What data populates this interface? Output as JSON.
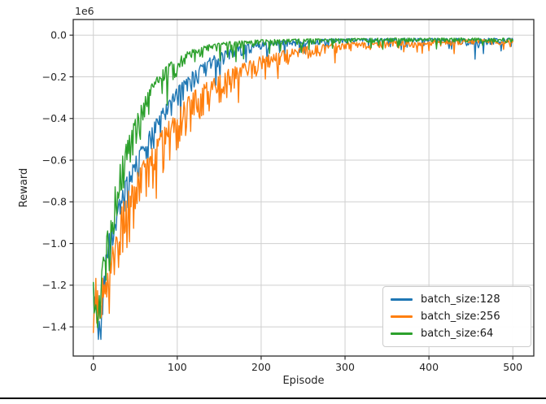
{
  "figure": {
    "background_color": "#ffffff",
    "bottom_rule_color": "#000000",
    "spine_color": "#2b2b2b",
    "grid_color": "#cfcfcf",
    "text_color": "#262626"
  },
  "chart_data": {
    "type": "line",
    "title": "",
    "xlabel": "Episode",
    "ylabel": "Reward",
    "y_offset_label": "1e6",
    "grid": true,
    "legend_position": "lower right",
    "xlim": [
      -24,
      525
    ],
    "ylim_1e6": [
      -1.54,
      0.075
    ],
    "x_range": [
      0,
      500
    ],
    "x_step": 1,
    "xticks": [
      0,
      100,
      200,
      300,
      400,
      500
    ],
    "xtick_labels": [
      "0",
      "100",
      "200",
      "300",
      "400",
      "500"
    ],
    "yticks_1e6": [
      0.0,
      -0.2,
      -0.4,
      -0.6,
      -0.8,
      -1.0,
      -1.2,
      -1.4
    ],
    "ytick_labels": [
      "0.0",
      "−0.2",
      "−0.4",
      "−0.6",
      "−0.8",
      "−1.0",
      "−1.2",
      "−1.4"
    ],
    "value_clamp_1e6": [
      -1.46,
      -0.004
    ],
    "series": [
      {
        "name": "batch_size:128",
        "color": "#1f77b4",
        "units": "1e6",
        "trend": [
          [
            0,
            -1.22
          ],
          [
            4,
            -1.36
          ],
          [
            8,
            -1.42
          ],
          [
            12,
            -1.18
          ],
          [
            16,
            -1.05
          ],
          [
            20,
            -0.98
          ],
          [
            25,
            -0.92
          ],
          [
            30,
            -0.84
          ],
          [
            35,
            -0.78
          ],
          [
            40,
            -0.72
          ],
          [
            45,
            -0.67
          ],
          [
            50,
            -0.63
          ],
          [
            55,
            -0.58
          ],
          [
            60,
            -0.545
          ],
          [
            65,
            -0.51
          ],
          [
            70,
            -0.47
          ],
          [
            75,
            -0.435
          ],
          [
            80,
            -0.4
          ],
          [
            85,
            -0.37
          ],
          [
            90,
            -0.34
          ],
          [
            95,
            -0.31
          ],
          [
            100,
            -0.28
          ],
          [
            110,
            -0.235
          ],
          [
            120,
            -0.19
          ],
          [
            130,
            -0.155
          ],
          [
            140,
            -0.125
          ],
          [
            150,
            -0.105
          ],
          [
            160,
            -0.088
          ],
          [
            170,
            -0.072
          ],
          [
            180,
            -0.06
          ],
          [
            190,
            -0.052
          ],
          [
            200,
            -0.045
          ],
          [
            220,
            -0.038
          ],
          [
            240,
            -0.032
          ],
          [
            260,
            -0.028
          ],
          [
            280,
            -0.026
          ],
          [
            300,
            -0.024
          ],
          [
            340,
            -0.022
          ],
          [
            380,
            -0.022
          ],
          [
            420,
            -0.022
          ],
          [
            460,
            -0.028
          ],
          [
            500,
            -0.02
          ]
        ],
        "noise_envelope": [
          [
            0,
            0.09
          ],
          [
            8,
            0.13
          ],
          [
            20,
            0.13
          ],
          [
            40,
            0.12
          ],
          [
            60,
            0.105
          ],
          [
            80,
            0.09
          ],
          [
            100,
            0.08
          ],
          [
            130,
            0.06
          ],
          [
            160,
            0.045
          ],
          [
            200,
            0.03
          ],
          [
            250,
            0.022
          ],
          [
            300,
            0.018
          ],
          [
            360,
            0.016
          ],
          [
            420,
            0.018
          ],
          [
            460,
            0.035
          ],
          [
            500,
            0.016
          ]
        ]
      },
      {
        "name": "batch_size:256",
        "color": "#ff7f0e",
        "units": "1e6",
        "trend": [
          [
            0,
            -1.43
          ],
          [
            3,
            -1.18
          ],
          [
            6,
            -1.33
          ],
          [
            10,
            -1.22
          ],
          [
            14,
            -1.28
          ],
          [
            18,
            -1.18
          ],
          [
            22,
            -1.1
          ],
          [
            26,
            -1.02
          ],
          [
            30,
            -0.95
          ],
          [
            35,
            -0.88
          ],
          [
            40,
            -0.83
          ],
          [
            45,
            -0.8
          ],
          [
            50,
            -0.75
          ],
          [
            55,
            -0.71
          ],
          [
            60,
            -0.67
          ],
          [
            65,
            -0.64
          ],
          [
            70,
            -0.6
          ],
          [
            75,
            -0.57
          ],
          [
            80,
            -0.53
          ],
          [
            85,
            -0.5
          ],
          [
            90,
            -0.47
          ],
          [
            95,
            -0.45
          ],
          [
            100,
            -0.42
          ],
          [
            110,
            -0.36
          ],
          [
            120,
            -0.315
          ],
          [
            130,
            -0.28
          ],
          [
            140,
            -0.255
          ],
          [
            150,
            -0.23
          ],
          [
            160,
            -0.2
          ],
          [
            170,
            -0.18
          ],
          [
            180,
            -0.16
          ],
          [
            190,
            -0.14
          ],
          [
            200,
            -0.125
          ],
          [
            215,
            -0.105
          ],
          [
            230,
            -0.09
          ],
          [
            245,
            -0.078
          ],
          [
            260,
            -0.066
          ],
          [
            280,
            -0.055
          ],
          [
            300,
            -0.048
          ],
          [
            330,
            -0.042
          ],
          [
            360,
            -0.038
          ],
          [
            400,
            -0.034
          ],
          [
            450,
            -0.03
          ],
          [
            500,
            -0.026
          ]
        ],
        "noise_envelope": [
          [
            0,
            0.14
          ],
          [
            10,
            0.2
          ],
          [
            25,
            0.21
          ],
          [
            45,
            0.2
          ],
          [
            65,
            0.19
          ],
          [
            85,
            0.17
          ],
          [
            105,
            0.15
          ],
          [
            130,
            0.12
          ],
          [
            155,
            0.1
          ],
          [
            180,
            0.08
          ],
          [
            210,
            0.06
          ],
          [
            240,
            0.05
          ],
          [
            270,
            0.04
          ],
          [
            300,
            0.032
          ],
          [
            350,
            0.026
          ],
          [
            400,
            0.022
          ],
          [
            450,
            0.02
          ],
          [
            500,
            0.018
          ]
        ]
      },
      {
        "name": "batch_size:64",
        "color": "#2ca02c",
        "units": "1e6",
        "trend": [
          [
            0,
            -1.18
          ],
          [
            4,
            -1.38
          ],
          [
            8,
            -1.25
          ],
          [
            12,
            -1.12
          ],
          [
            16,
            -1.02
          ],
          [
            20,
            -0.92
          ],
          [
            24,
            -0.82
          ],
          [
            28,
            -0.74
          ],
          [
            32,
            -0.67
          ],
          [
            36,
            -0.61
          ],
          [
            40,
            -0.56
          ],
          [
            45,
            -0.5
          ],
          [
            50,
            -0.45
          ],
          [
            55,
            -0.4
          ],
          [
            60,
            -0.35
          ],
          [
            65,
            -0.31
          ],
          [
            70,
            -0.27
          ],
          [
            75,
            -0.24
          ],
          [
            80,
            -0.21
          ],
          [
            85,
            -0.185
          ],
          [
            90,
            -0.165
          ],
          [
            95,
            -0.148
          ],
          [
            100,
            -0.132
          ],
          [
            110,
            -0.105
          ],
          [
            120,
            -0.085
          ],
          [
            130,
            -0.07
          ],
          [
            140,
            -0.058
          ],
          [
            150,
            -0.05
          ],
          [
            160,
            -0.044
          ],
          [
            175,
            -0.038
          ],
          [
            190,
            -0.033
          ],
          [
            210,
            -0.029
          ],
          [
            240,
            -0.026
          ],
          [
            280,
            -0.023
          ],
          [
            320,
            -0.021
          ],
          [
            360,
            -0.02
          ],
          [
            400,
            -0.02
          ],
          [
            450,
            -0.019
          ],
          [
            500,
            -0.02
          ]
        ],
        "noise_envelope": [
          [
            0,
            0.12
          ],
          [
            8,
            0.17
          ],
          [
            20,
            0.16
          ],
          [
            40,
            0.14
          ],
          [
            60,
            0.12
          ],
          [
            80,
            0.09
          ],
          [
            100,
            0.07
          ],
          [
            125,
            0.05
          ],
          [
            150,
            0.038
          ],
          [
            180,
            0.028
          ],
          [
            220,
            0.022
          ],
          [
            280,
            0.018
          ],
          [
            350,
            0.016
          ],
          [
            500,
            0.015
          ]
        ]
      }
    ]
  }
}
